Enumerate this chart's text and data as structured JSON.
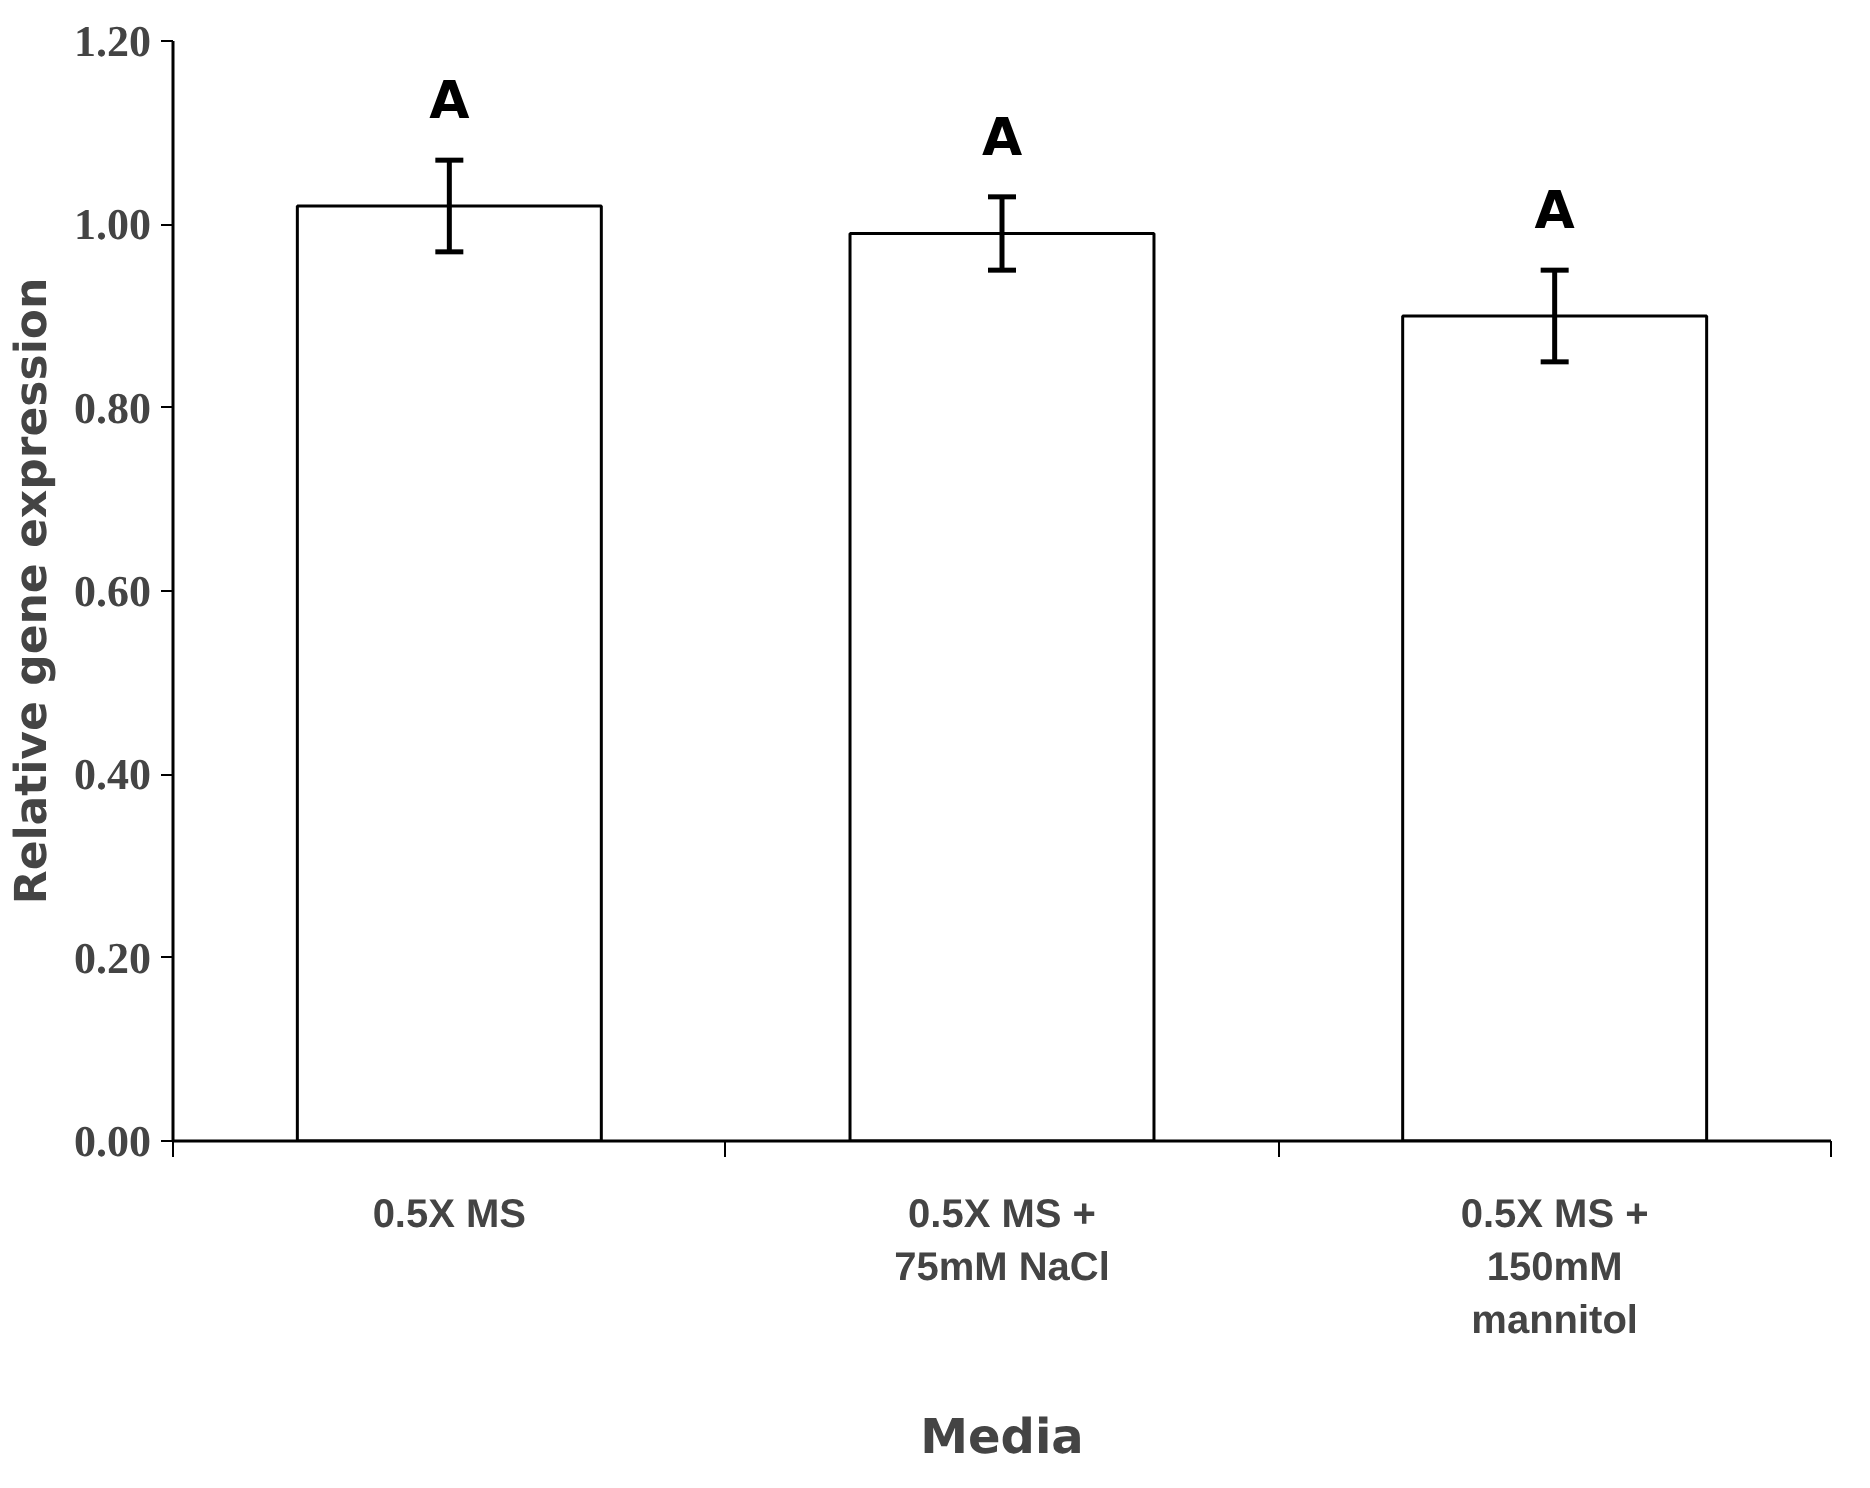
{
  "chart_data": {
    "type": "bar",
    "xlabel": "Media",
    "ylabel": "Relative gene expression",
    "categories": [
      "0.5X MS",
      "0.5X MS +\n75mM NaCl",
      "0.5X MS +\n150mM\nmannitol"
    ],
    "values": [
      1.02,
      0.99,
      0.9
    ],
    "errors": [
      0.05,
      0.04,
      0.05
    ],
    "color": "#ffffff",
    "ylim": [
      0,
      1.2
    ],
    "yticks": [
      {
        "value": 0,
        "label": "0.00"
      },
      {
        "value": 0.2,
        "label": "0.20"
      },
      {
        "value": 0.4,
        "label": "0.40"
      },
      {
        "value": 0.6,
        "label": "0.60"
      },
      {
        "value": 0.8,
        "label": "0.80"
      },
      {
        "value": 1.0,
        "label": "1.00"
      },
      {
        "value": 1.2,
        "label": "1.20"
      }
    ],
    "annotations": [
      "A",
      "A",
      "A"
    ],
    "grid": false
  }
}
